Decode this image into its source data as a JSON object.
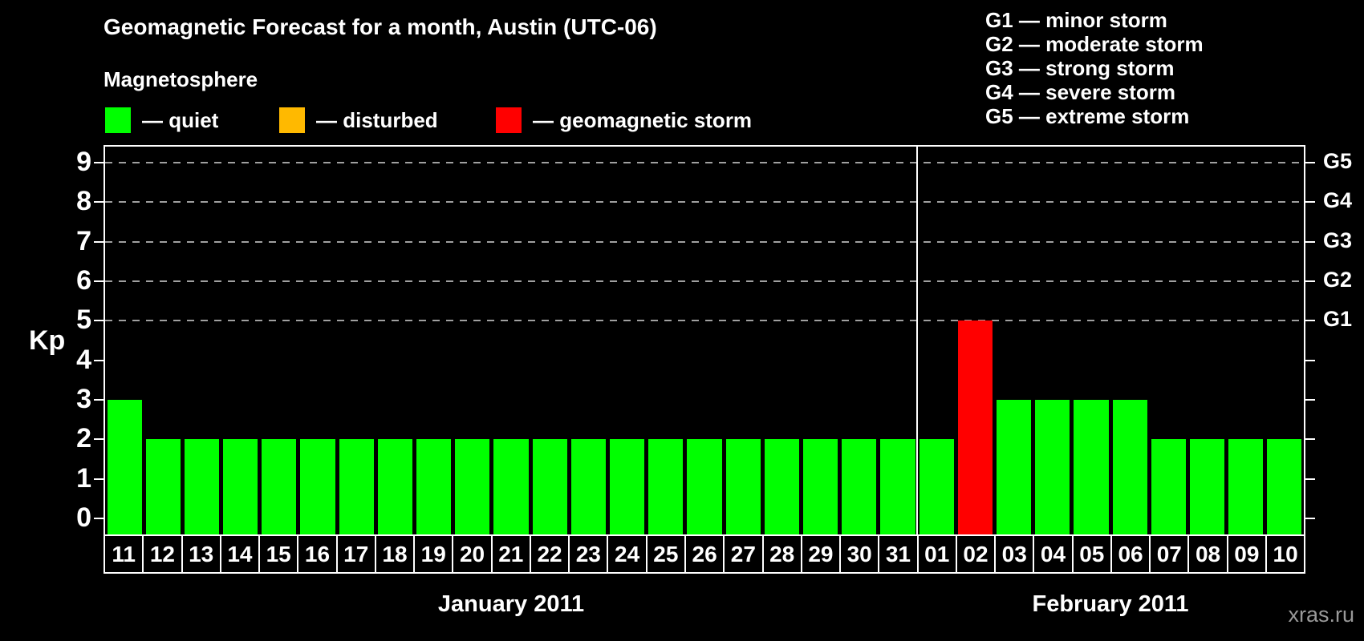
{
  "header": {
    "title": "Geomagnetic Forecast for a month, Austin (UTC-06)",
    "magnetosphere_label": "Magnetosphere"
  },
  "legend": {
    "items": [
      {
        "key": "quiet",
        "label": "— quiet",
        "color": "#00FF00"
      },
      {
        "key": "disturbed",
        "label": "— disturbed",
        "color": "#FFB900"
      },
      {
        "key": "storm",
        "label": "— geomagnetic storm",
        "color": "#FF0000"
      }
    ]
  },
  "g_legend": {
    "lines": [
      "G1 — minor storm",
      "G2 — moderate storm",
      "G3 — strong storm",
      "G4 — severe storm",
      "G5 — extreme storm"
    ]
  },
  "watermark": "xras.ru",
  "chart_data": {
    "type": "bar",
    "title": "Geomagnetic Forecast for a month, Austin (UTC-06)",
    "xlabel": "",
    "ylabel": "Kp",
    "ylim": [
      0,
      9
    ],
    "y_ticks": [
      0,
      1,
      2,
      3,
      4,
      5,
      6,
      7,
      8,
      9
    ],
    "grid_levels": [
      5,
      6,
      7,
      8,
      9
    ],
    "g_levels": [
      {
        "label": "G1",
        "kp": 5
      },
      {
        "label": "G2",
        "kp": 6
      },
      {
        "label": "G3",
        "kp": 7
      },
      {
        "label": "G4",
        "kp": 8
      },
      {
        "label": "G5",
        "kp": 9
      }
    ],
    "legend_position": "top",
    "grid": "dashed-horizontal-above-5",
    "months": [
      {
        "label": "January 2011",
        "days": 21
      },
      {
        "label": "February 2011",
        "days": 10
      }
    ],
    "days": [
      {
        "day": "11",
        "kp": 3,
        "state": "quiet"
      },
      {
        "day": "12",
        "kp": 2,
        "state": "quiet"
      },
      {
        "day": "13",
        "kp": 2,
        "state": "quiet"
      },
      {
        "day": "14",
        "kp": 2,
        "state": "quiet"
      },
      {
        "day": "15",
        "kp": 2,
        "state": "quiet"
      },
      {
        "day": "16",
        "kp": 2,
        "state": "quiet"
      },
      {
        "day": "17",
        "kp": 2,
        "state": "quiet"
      },
      {
        "day": "18",
        "kp": 2,
        "state": "quiet"
      },
      {
        "day": "19",
        "kp": 2,
        "state": "quiet"
      },
      {
        "day": "20",
        "kp": 2,
        "state": "quiet"
      },
      {
        "day": "21",
        "kp": 2,
        "state": "quiet"
      },
      {
        "day": "22",
        "kp": 2,
        "state": "quiet"
      },
      {
        "day": "23",
        "kp": 2,
        "state": "quiet"
      },
      {
        "day": "24",
        "kp": 2,
        "state": "quiet"
      },
      {
        "day": "25",
        "kp": 2,
        "state": "quiet"
      },
      {
        "day": "26",
        "kp": 2,
        "state": "quiet"
      },
      {
        "day": "27",
        "kp": 2,
        "state": "quiet"
      },
      {
        "day": "28",
        "kp": 2,
        "state": "quiet"
      },
      {
        "day": "29",
        "kp": 2,
        "state": "quiet"
      },
      {
        "day": "30",
        "kp": 2,
        "state": "quiet"
      },
      {
        "day": "31",
        "kp": 2,
        "state": "quiet"
      },
      {
        "day": "01",
        "kp": 2,
        "state": "quiet"
      },
      {
        "day": "02",
        "kp": 5,
        "state": "storm"
      },
      {
        "day": "03",
        "kp": 3,
        "state": "quiet"
      },
      {
        "day": "04",
        "kp": 3,
        "state": "quiet"
      },
      {
        "day": "05",
        "kp": 3,
        "state": "quiet"
      },
      {
        "day": "06",
        "kp": 3,
        "state": "quiet"
      },
      {
        "day": "07",
        "kp": 2,
        "state": "quiet"
      },
      {
        "day": "08",
        "kp": 2,
        "state": "quiet"
      },
      {
        "day": "09",
        "kp": 2,
        "state": "quiet"
      },
      {
        "day": "10",
        "kp": 2,
        "state": "quiet"
      }
    ]
  }
}
